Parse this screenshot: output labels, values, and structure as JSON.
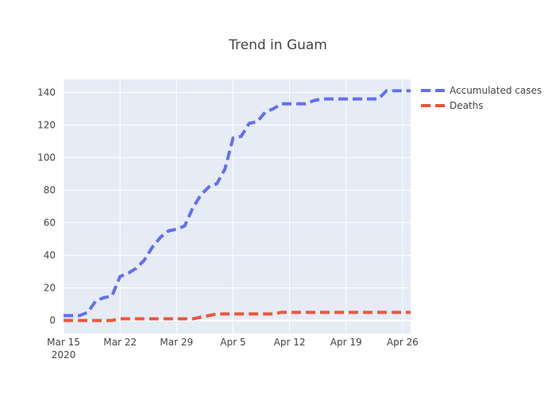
{
  "chart_data": {
    "type": "line",
    "title": "Trend in Guam",
    "xlabel": "",
    "ylabel": "",
    "x_range": [
      "2020-03-15",
      "2020-04-27"
    ],
    "ylim": [
      -8,
      148
    ],
    "x_ticks": [
      {
        "date": "2020-03-15",
        "label": "Mar 15",
        "sublabel": "2020"
      },
      {
        "date": "2020-03-22",
        "label": "Mar 22",
        "sublabel": ""
      },
      {
        "date": "2020-03-29",
        "label": "Mar 29",
        "sublabel": ""
      },
      {
        "date": "2020-04-05",
        "label": "Apr 5",
        "sublabel": ""
      },
      {
        "date": "2020-04-12",
        "label": "Apr 12",
        "sublabel": ""
      },
      {
        "date": "2020-04-19",
        "label": "Apr 19",
        "sublabel": ""
      },
      {
        "date": "2020-04-26",
        "label": "Apr 26",
        "sublabel": ""
      }
    ],
    "y_ticks": [
      {
        "value": 0,
        "label": "0"
      },
      {
        "value": 20,
        "label": "20"
      },
      {
        "value": 40,
        "label": "40"
      },
      {
        "value": 60,
        "label": "60"
      },
      {
        "value": 80,
        "label": "80"
      },
      {
        "value": 100,
        "label": "100"
      },
      {
        "value": 120,
        "label": "120"
      },
      {
        "value": 140,
        "label": "140"
      }
    ],
    "grid": true,
    "legend_position": "right",
    "series": [
      {
        "name": "Accumulated cases",
        "color": "#636efa",
        "dash": "dash",
        "points": [
          [
            "2020-03-15",
            3
          ],
          [
            "2020-03-16",
            3
          ],
          [
            "2020-03-17",
            3
          ],
          [
            "2020-03-18",
            5
          ],
          [
            "2020-03-19",
            12
          ],
          [
            "2020-03-20",
            14
          ],
          [
            "2020-03-21",
            15
          ],
          [
            "2020-03-22",
            27
          ],
          [
            "2020-03-23",
            29
          ],
          [
            "2020-03-24",
            32
          ],
          [
            "2020-03-25",
            37
          ],
          [
            "2020-03-26",
            45
          ],
          [
            "2020-03-27",
            51
          ],
          [
            "2020-03-28",
            55
          ],
          [
            "2020-03-29",
            56
          ],
          [
            "2020-03-30",
            58
          ],
          [
            "2020-03-31",
            69
          ],
          [
            "2020-04-01",
            77
          ],
          [
            "2020-04-02",
            82
          ],
          [
            "2020-04-03",
            84
          ],
          [
            "2020-04-04",
            93
          ],
          [
            "2020-04-05",
            112
          ],
          [
            "2020-04-06",
            113
          ],
          [
            "2020-04-07",
            121
          ],
          [
            "2020-04-08",
            122
          ],
          [
            "2020-04-09",
            128
          ],
          [
            "2020-04-10",
            130
          ],
          [
            "2020-04-11",
            133
          ],
          [
            "2020-04-12",
            133
          ],
          [
            "2020-04-13",
            133
          ],
          [
            "2020-04-14",
            133
          ],
          [
            "2020-04-15",
            135
          ],
          [
            "2020-04-16",
            136
          ],
          [
            "2020-04-17",
            136
          ],
          [
            "2020-04-18",
            136
          ],
          [
            "2020-04-19",
            136
          ],
          [
            "2020-04-20",
            136
          ],
          [
            "2020-04-21",
            136
          ],
          [
            "2020-04-22",
            136
          ],
          [
            "2020-04-23",
            136
          ],
          [
            "2020-04-24",
            141
          ],
          [
            "2020-04-25",
            141
          ],
          [
            "2020-04-26",
            141
          ],
          [
            "2020-04-27",
            141
          ]
        ]
      },
      {
        "name": "Deaths",
        "color": "#ef553b",
        "dash": "dash",
        "points": [
          [
            "2020-03-15",
            0
          ],
          [
            "2020-03-16",
            0
          ],
          [
            "2020-03-17",
            0
          ],
          [
            "2020-03-18",
            0
          ],
          [
            "2020-03-19",
            0
          ],
          [
            "2020-03-20",
            0
          ],
          [
            "2020-03-21",
            0
          ],
          [
            "2020-03-22",
            1
          ],
          [
            "2020-03-23",
            1
          ],
          [
            "2020-03-24",
            1
          ],
          [
            "2020-03-25",
            1
          ],
          [
            "2020-03-26",
            1
          ],
          [
            "2020-03-27",
            1
          ],
          [
            "2020-03-28",
            1
          ],
          [
            "2020-03-29",
            1
          ],
          [
            "2020-03-30",
            1
          ],
          [
            "2020-03-31",
            1
          ],
          [
            "2020-04-01",
            2
          ],
          [
            "2020-04-02",
            3
          ],
          [
            "2020-04-03",
            4
          ],
          [
            "2020-04-04",
            4
          ],
          [
            "2020-04-05",
            4
          ],
          [
            "2020-04-06",
            4
          ],
          [
            "2020-04-07",
            4
          ],
          [
            "2020-04-08",
            4
          ],
          [
            "2020-04-09",
            4
          ],
          [
            "2020-04-10",
            4
          ],
          [
            "2020-04-11",
            5
          ],
          [
            "2020-04-12",
            5
          ],
          [
            "2020-04-13",
            5
          ],
          [
            "2020-04-14",
            5
          ],
          [
            "2020-04-15",
            5
          ],
          [
            "2020-04-16",
            5
          ],
          [
            "2020-04-17",
            5
          ],
          [
            "2020-04-18",
            5
          ],
          [
            "2020-04-19",
            5
          ],
          [
            "2020-04-20",
            5
          ],
          [
            "2020-04-21",
            5
          ],
          [
            "2020-04-22",
            5
          ],
          [
            "2020-04-23",
            5
          ],
          [
            "2020-04-24",
            5
          ],
          [
            "2020-04-25",
            5
          ],
          [
            "2020-04-26",
            5
          ],
          [
            "2020-04-27",
            5
          ]
        ]
      }
    ]
  }
}
